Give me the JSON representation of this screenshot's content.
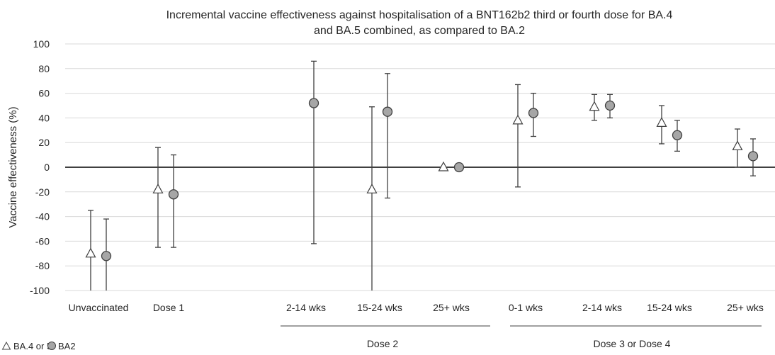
{
  "chart_data": {
    "type": "scatter",
    "title_line1": "Incremental vaccine effectiveness against hospitalisation of a BNT162b2 third or fourth dose for BA.4",
    "title_line2": "and BA.5 combined, as compared to BA.2",
    "ylabel": "Vaccine effectiveness (%)",
    "xlabel": "",
    "ylim": [
      -100,
      100
    ],
    "yticks": [
      "100",
      "80",
      "60",
      "40",
      "20",
      "0",
      "-20",
      "-40",
      "-60",
      "-80",
      "-100"
    ],
    "grid": true,
    "categories": [
      "Unvaccinated",
      "Dose 1",
      "2-14 wks",
      "15-24 wks",
      "25+ wks",
      "0-1 wks",
      "2-14 wks",
      "15-24 wks",
      "25+ wks"
    ],
    "groups": [
      {
        "label": "Dose 2"
      },
      {
        "label": "Dose 3 or Dose 4"
      }
    ],
    "legend_position": "bottom-left",
    "series": [
      {
        "name": "BA.4 or 5",
        "marker": "triangle",
        "color": "#ffffff",
        "values": [
          -70,
          -18,
          null,
          -18,
          0,
          38,
          49,
          36,
          17
        ],
        "lower": [
          -100,
          -65,
          null,
          -100,
          null,
          -16,
          38,
          19,
          0
        ],
        "upper": [
          -35,
          16,
          null,
          49,
          null,
          67,
          59,
          50,
          31
        ]
      },
      {
        "name": "BA2",
        "marker": "circle",
        "color": "#a6a6a6",
        "values": [
          -72,
          -22,
          52,
          45,
          0,
          44,
          50,
          26,
          9
        ],
        "lower": [
          -100,
          -65,
          -62,
          -25,
          null,
          25,
          40,
          13,
          -7
        ],
        "upper": [
          -42,
          10,
          86,
          76,
          null,
          60,
          59,
          38,
          23
        ]
      }
    ]
  }
}
